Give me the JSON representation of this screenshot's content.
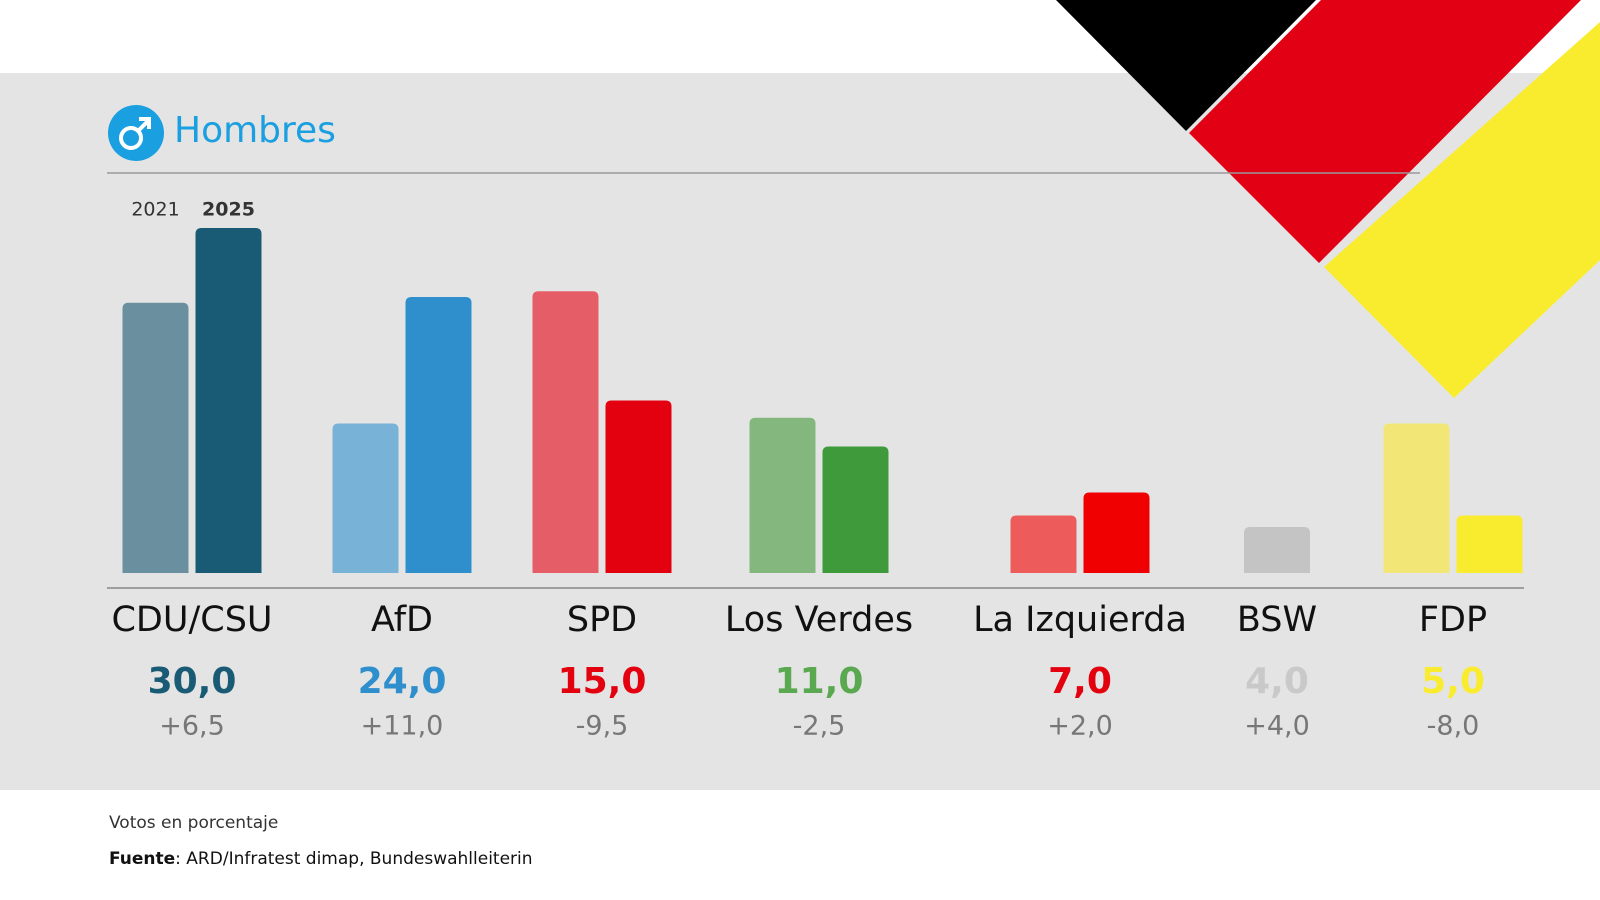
{
  "chart_data": {
    "type": "bar",
    "title": "Hombres",
    "categories": [
      "CDU/CSU",
      "AfD",
      "SPD",
      "Los Verdes",
      "La Izquierda",
      "BSW",
      "FDP"
    ],
    "series": [
      {
        "name": "2021",
        "colors": [
          "#6a909f",
          "#78b2d6",
          "#e55e67",
          "#84b77d",
          "#ee5b5b",
          "#c4c4c4",
          "#f2e776"
        ],
        "values": [
          23.5,
          13,
          24.5,
          13.5,
          5,
          null,
          13
        ]
      },
      {
        "name": "2025",
        "colors": [
          "#195a74",
          "#2e8fcc",
          "#e3000f",
          "#3f9a3c",
          "#f00000",
          "#c4c4c4",
          "#f9ec2f"
        ],
        "label_colors": [
          "#195a74",
          "#2e8fcc",
          "#e3000f",
          "#5aa84f",
          "#e3000f",
          "#c9c9c9",
          "#f9ec2f"
        ],
        "values": [
          30,
          24,
          15,
          11,
          7,
          4,
          5
        ],
        "value_labels": [
          "30,0",
          "24,0",
          "15,0",
          "11,0",
          "7,0",
          "4,0",
          "5,0"
        ]
      }
    ],
    "change_labels": [
      "+6,5",
      "+11,0",
      "-9,5",
      "-2,5",
      "+2,0",
      "+4,0",
      "-8,0"
    ],
    "ylim": [
      0,
      30
    ],
    "note": "Votos en porcentaje",
    "source_label": "Fuente",
    "source": ": ARD/Infratest dimap, Bundeswahlleiterin"
  }
}
